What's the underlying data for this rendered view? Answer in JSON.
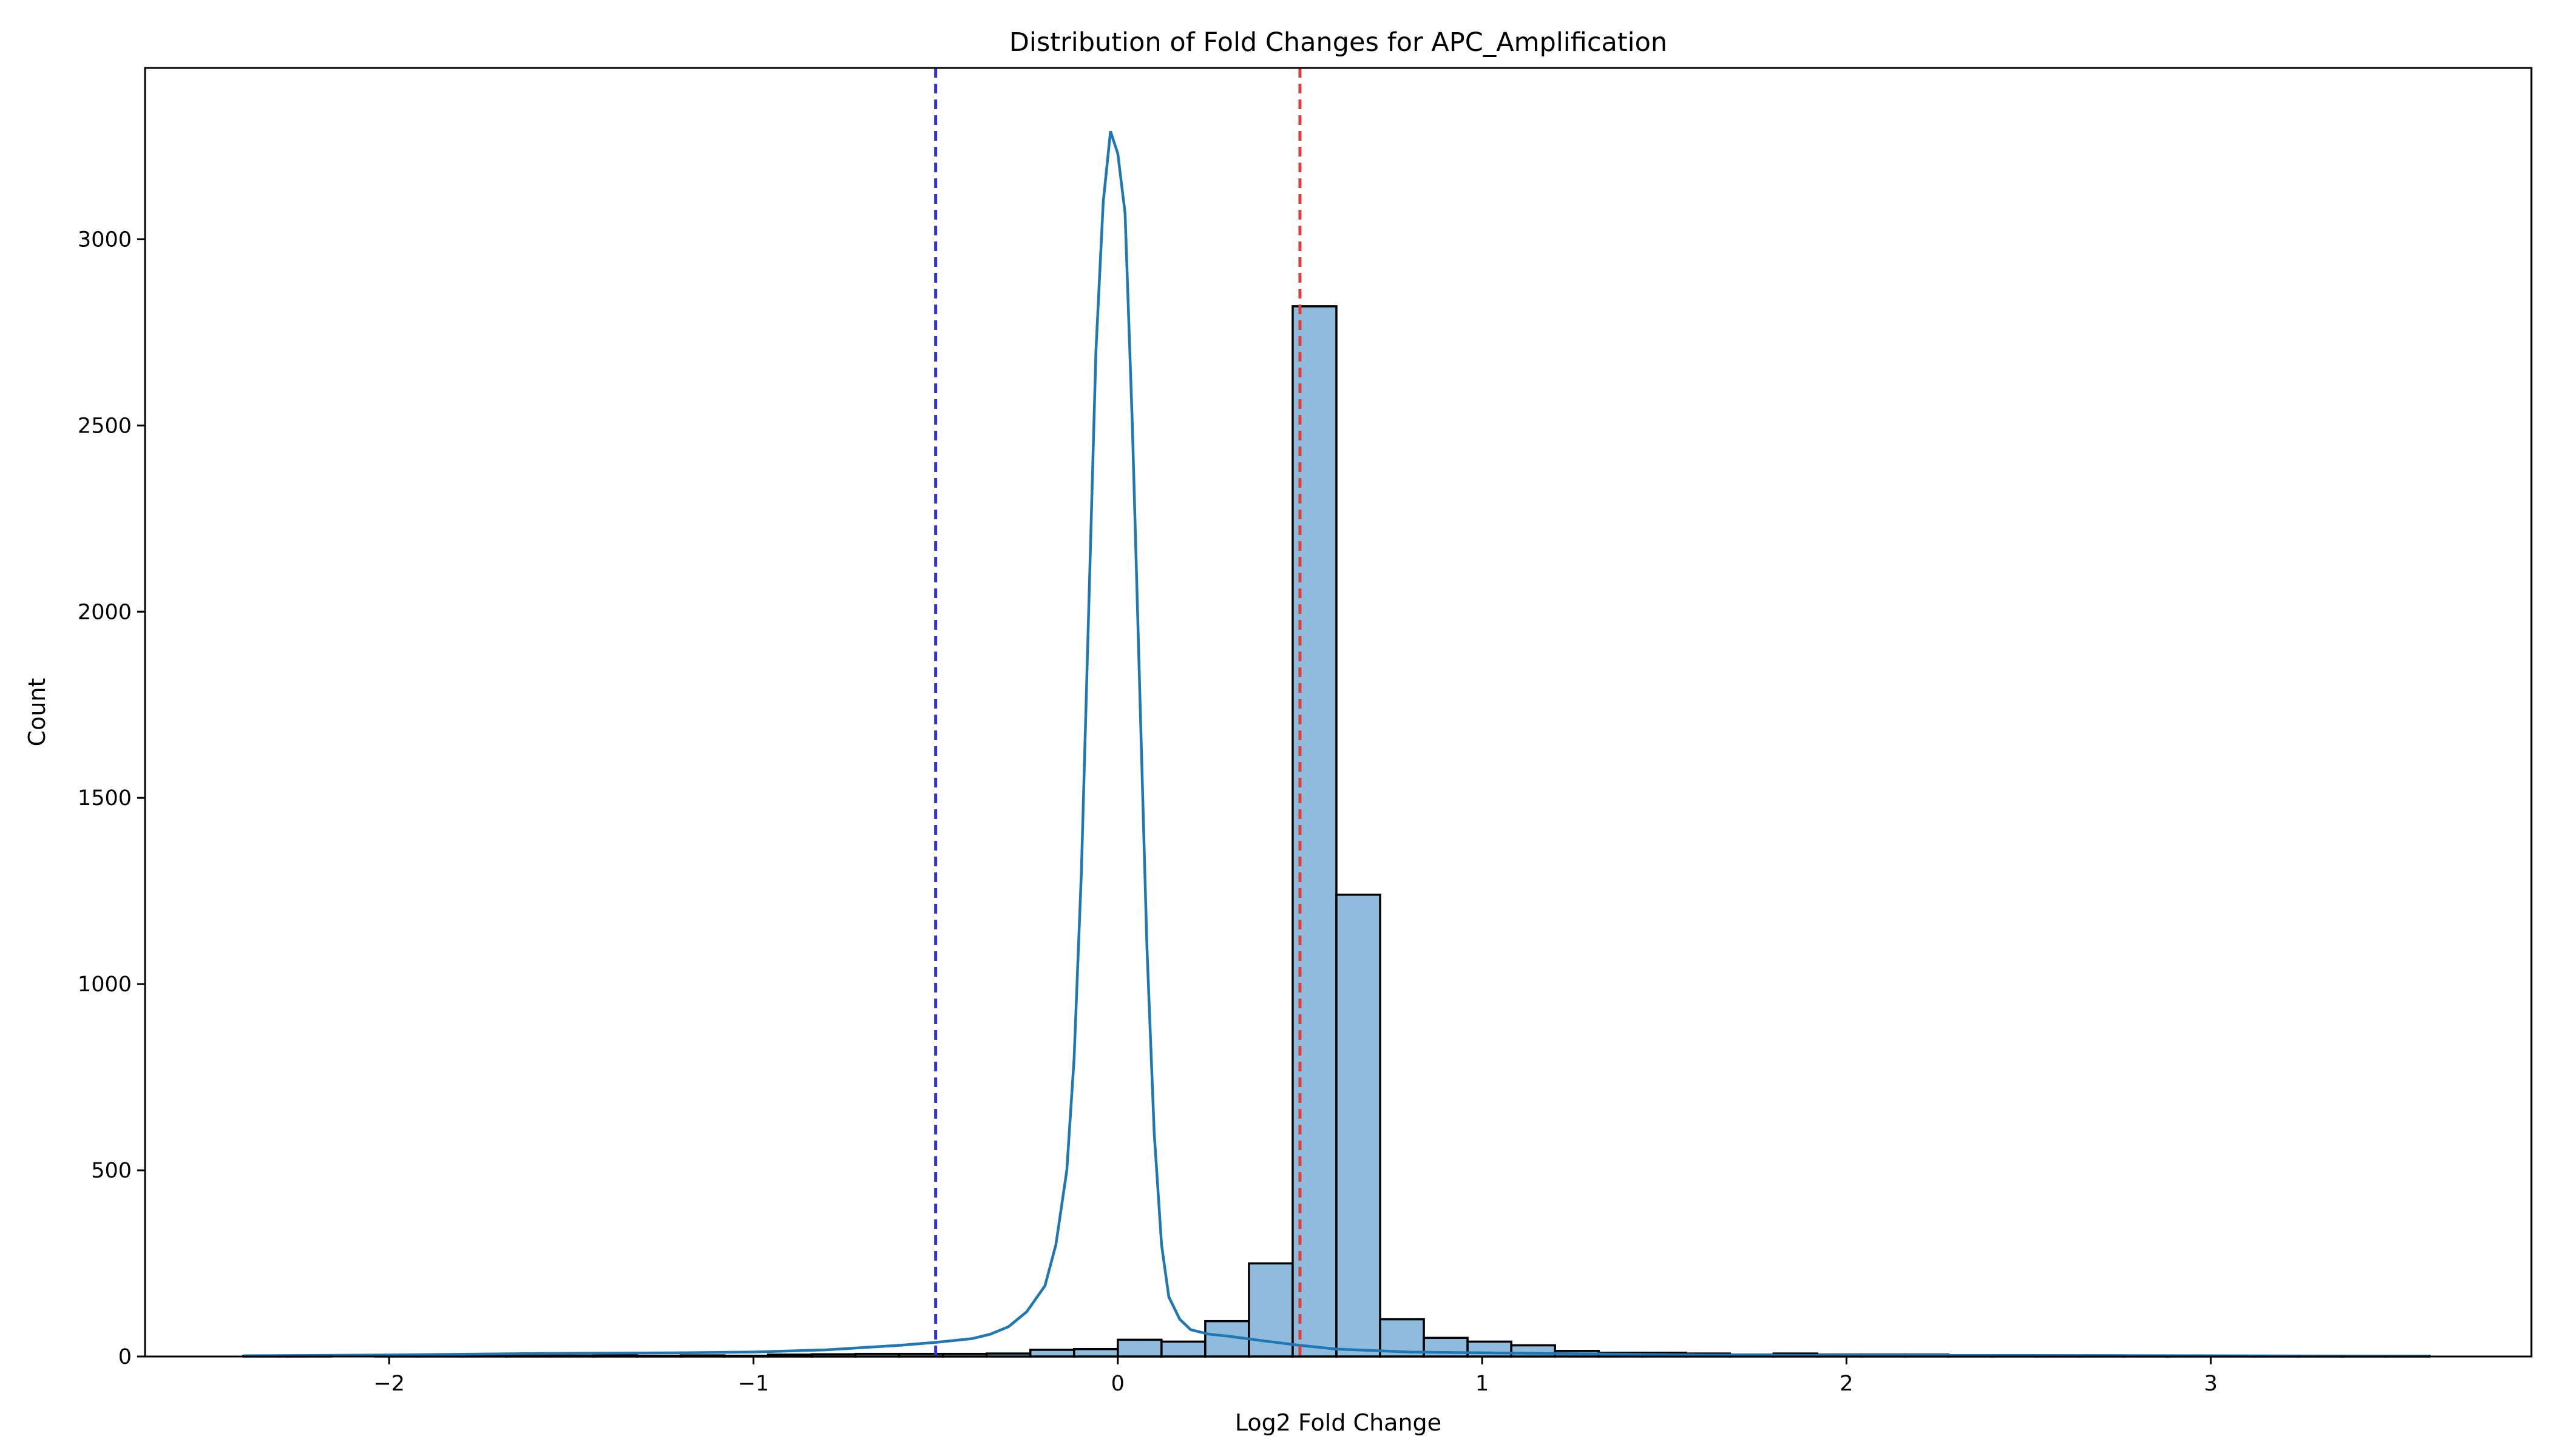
{
  "chart_data": {
    "type": "bar",
    "title": "Distribution of Fold Changes for APC_Amplification",
    "xlabel": "Log2 Fold Change",
    "ylabel": "Count",
    "xlim": [
      -2.67,
      3.88
    ],
    "ylim": [
      0,
      3460
    ],
    "xticks": [
      -2,
      -1,
      0,
      1,
      2,
      3
    ],
    "xtick_labels": [
      "−2",
      "−1",
      "0",
      "1",
      "2",
      "3"
    ],
    "yticks": [
      0,
      500,
      1000,
      1500,
      2000,
      2500,
      3000
    ],
    "ytick_labels": [
      "0",
      "500",
      "1000",
      "1500",
      "2000",
      "2500",
      "3000"
    ],
    "grid": false,
    "legend": "none",
    "bin_width": 0.12,
    "bin_edges_start": -2.4,
    "counts": [
      2,
      1,
      0,
      1,
      1,
      3,
      2,
      2,
      3,
      2,
      3,
      2,
      5,
      6,
      7,
      7,
      7,
      8,
      18,
      20,
      45,
      40,
      95,
      250,
      2820,
      1240,
      100,
      50,
      40,
      30,
      15,
      10,
      10,
      8,
      5,
      8,
      5,
      5,
      5,
      3,
      2,
      2,
      3,
      2,
      2,
      2,
      2,
      2,
      2,
      2
    ],
    "kde": {
      "color": "#1f77b4",
      "x": [
        -2.4,
        -2.0,
        -1.6,
        -1.2,
        -1.0,
        -0.8,
        -0.7,
        -0.6,
        -0.5,
        -0.4,
        -0.35,
        -0.3,
        -0.25,
        -0.2,
        -0.17,
        -0.14,
        -0.12,
        -0.1,
        -0.08,
        -0.06,
        -0.04,
        -0.02,
        0.0,
        0.02,
        0.04,
        0.06,
        0.08,
        0.1,
        0.12,
        0.14,
        0.17,
        0.2,
        0.25,
        0.3,
        0.4,
        0.5,
        0.6,
        0.8,
        1.0,
        1.2,
        1.6,
        2.0,
        2.5,
        3.0,
        3.6
      ],
      "y": [
        2,
        4,
        8,
        10,
        12,
        18,
        24,
        30,
        38,
        48,
        60,
        80,
        120,
        190,
        300,
        500,
        800,
        1300,
        2000,
        2700,
        3100,
        3290,
        3230,
        3070,
        2500,
        1800,
        1100,
        600,
        300,
        160,
        100,
        72,
        60,
        55,
        42,
        30,
        20,
        12,
        10,
        8,
        4,
        3,
        3,
        2,
        1
      ]
    },
    "thresholds": [
      {
        "x": -0.5,
        "color": "#3333dd"
      },
      {
        "x": 0.5,
        "color": "#e03c3c"
      }
    ]
  }
}
